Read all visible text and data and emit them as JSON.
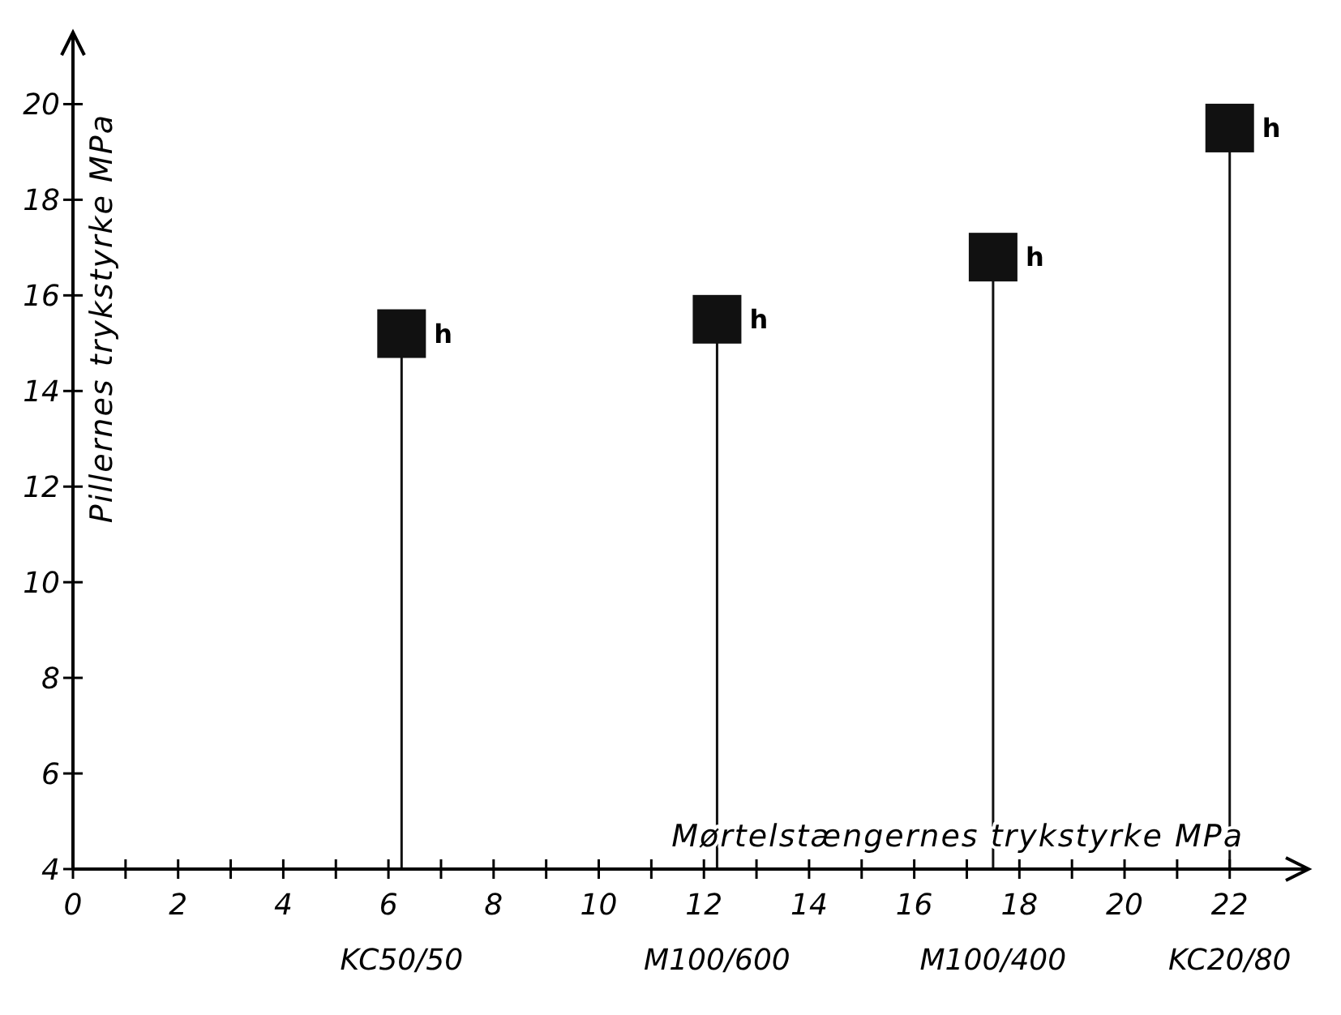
{
  "chart_data": {
    "type": "lollipop",
    "xlabel": "Mørtelstængernes trykstyrke MPa",
    "ylabel": "Pillernes trykstyrke MPa",
    "x": [
      6.25,
      12.25,
      17.5,
      22
    ],
    "series": [
      {
        "color": "#111111",
        "values": [
          15.2,
          15.5,
          16.8,
          19.5
        ]
      }
    ],
    "marker": "square",
    "xlim": [
      0,
      23.5
    ],
    "ylim": [
      4,
      21.5
    ],
    "xticks": [
      0,
      {
        "value": 1,
        "label": null
      },
      2,
      {
        "value": 3,
        "label": null
      },
      4,
      {
        "value": 5,
        "label": null
      },
      6,
      {
        "value": 7,
        "label": null
      },
      8,
      {
        "value": 9,
        "label": null
      },
      10,
      {
        "value": 11,
        "label": null
      },
      12,
      {
        "value": 13,
        "label": null
      },
      14,
      {
        "value": 15,
        "label": null
      },
      16,
      {
        "value": 17,
        "label": null
      },
      18,
      {
        "value": 19,
        "label": null
      },
      20,
      {
        "value": 21,
        "label": null
      },
      22
    ],
    "yticks": [
      4,
      6,
      8,
      10,
      12,
      14,
      16,
      18,
      20
    ],
    "annotations": [
      "KC50/50",
      "M100/600",
      "M100/400",
      "KC20/80",
      {
        "text": "h",
        "x": 6.25,
        "y": 15.2
      },
      {
        "text": "h",
        "x": 12.25,
        "y": 15.5
      },
      {
        "text": "h",
        "x": 17.5,
        "y": 16.8
      },
      {
        "text": "h",
        "x": 22,
        "y": 19.5
      }
    ]
  }
}
